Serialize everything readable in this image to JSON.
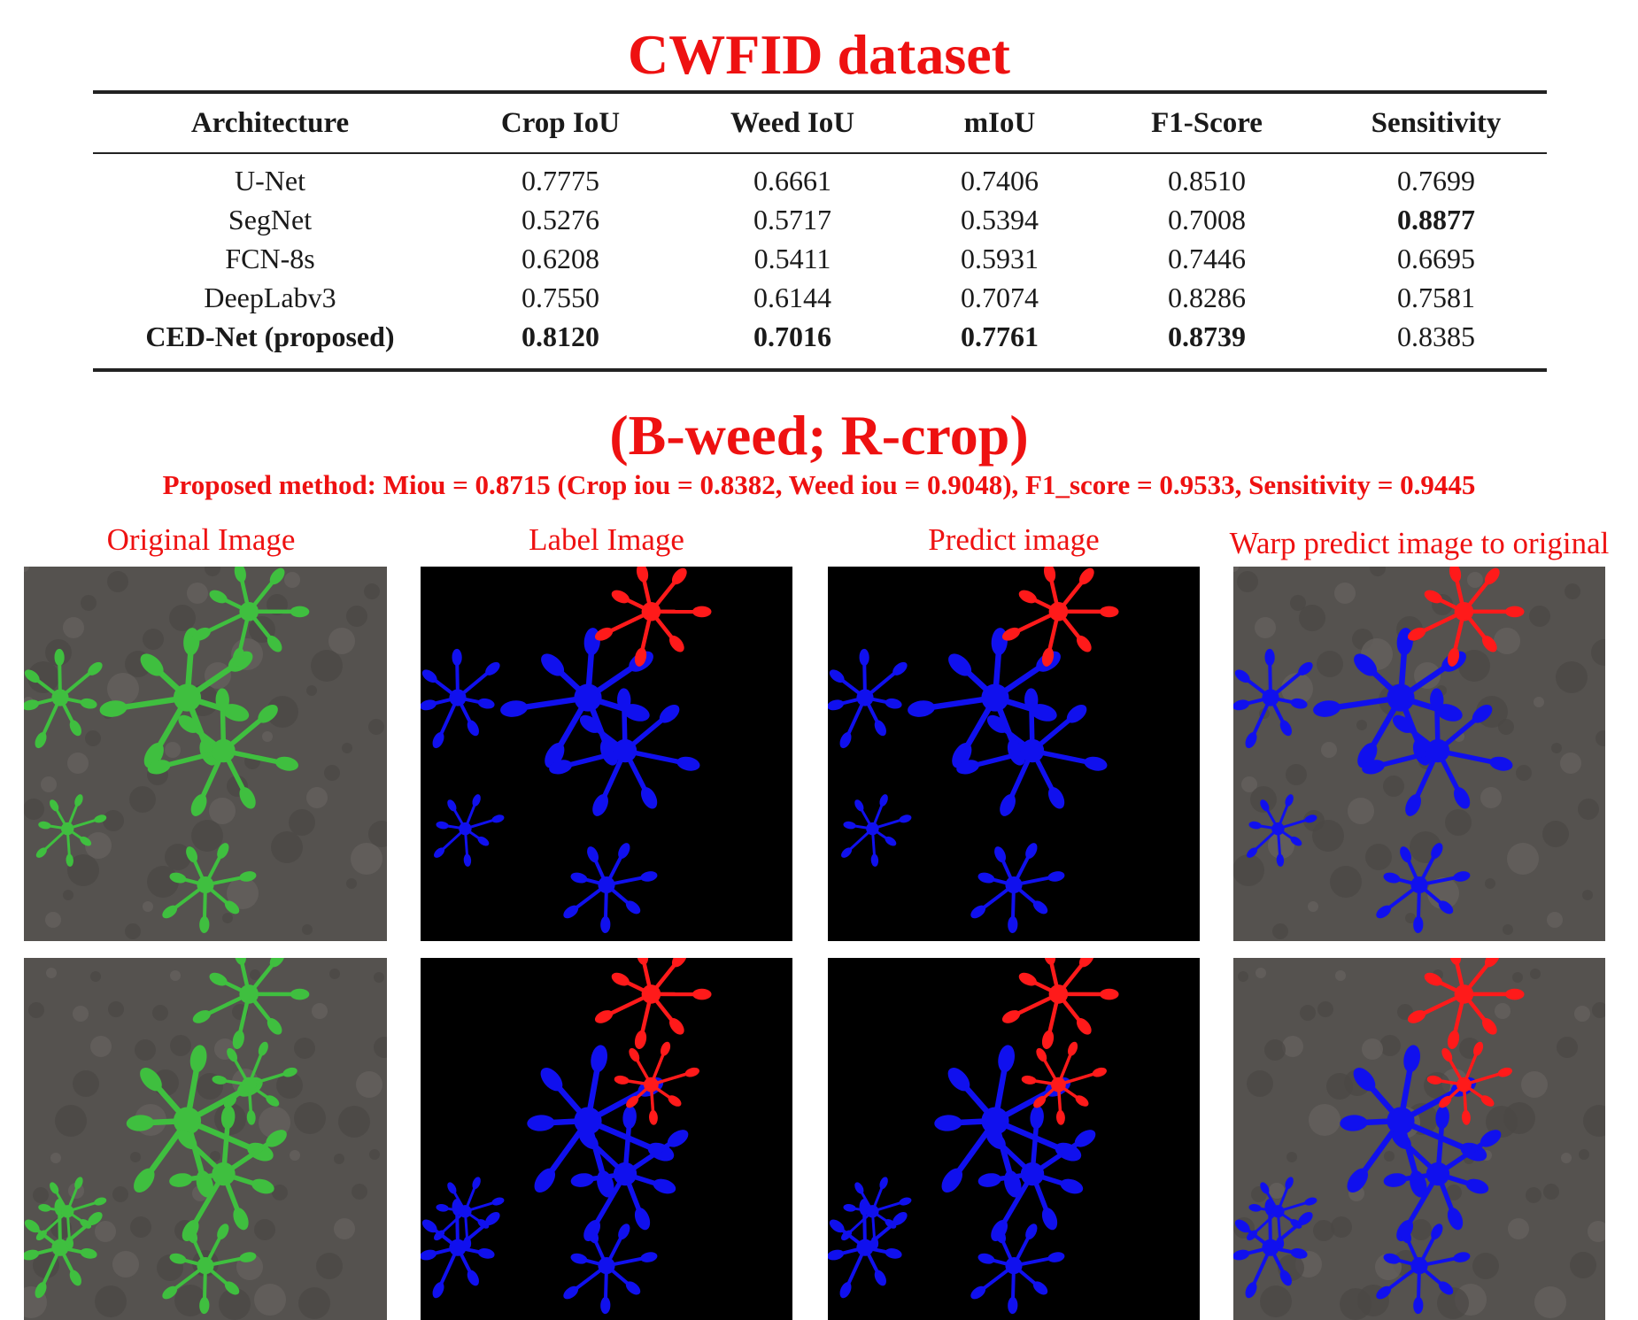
{
  "title": "CWFID dataset",
  "table": {
    "headers": [
      "Architecture",
      "Crop IoU",
      "Weed IoU",
      "mIoU",
      "F1-Score",
      "Sensitivity"
    ],
    "rows": [
      {
        "cells": [
          "U-Net",
          "0.7775",
          "0.6661",
          "0.7406",
          "0.8510",
          "0.7699"
        ],
        "bold": [
          false,
          false,
          false,
          false,
          false,
          false
        ]
      },
      {
        "cells": [
          "SegNet",
          "0.5276",
          "0.5717",
          "0.5394",
          "0.7008",
          "0.8877"
        ],
        "bold": [
          false,
          false,
          false,
          false,
          false,
          true
        ]
      },
      {
        "cells": [
          "FCN-8s",
          "0.6208",
          "0.5411",
          "0.5931",
          "0.7446",
          "0.6695"
        ],
        "bold": [
          false,
          false,
          false,
          false,
          false,
          false
        ]
      },
      {
        "cells": [
          "DeepLabv3",
          "0.7550",
          "0.6144",
          "0.7074",
          "0.8286",
          "0.7581"
        ],
        "bold": [
          false,
          false,
          false,
          false,
          false,
          false
        ]
      },
      {
        "cells": [
          "CED-Net (proposed)",
          "0.8120",
          "0.7016",
          "0.7761",
          "0.8739",
          "0.8385"
        ],
        "bold": [
          true,
          true,
          true,
          true,
          true,
          false
        ]
      }
    ]
  },
  "legend_title": "(B-weed; R-crop)",
  "summary": "Proposed method: Miou = 0.8715 (Crop iou = 0.8382, Weed iou = 0.9048), F1_score = 0.9533, Sensitivity = 0.9445",
  "columns": [
    "Original Image",
    "Label Image",
    "Predict image",
    "Warp predict image to original"
  ],
  "colors": {
    "accent": "#ee1111",
    "weed": "#1010ee",
    "crop": "#ff1a1a",
    "soil": "#55524f",
    "plant": "#3fbf3f",
    "mask_bg": "#000000"
  }
}
